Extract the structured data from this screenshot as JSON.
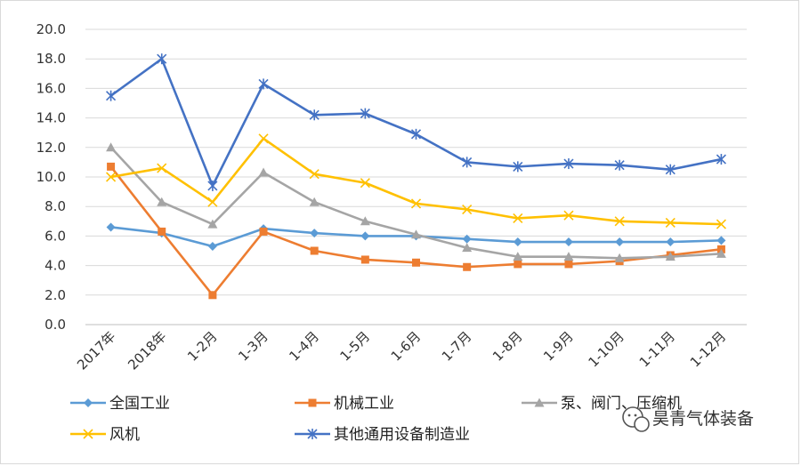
{
  "chart_data": {
    "type": "line",
    "categories": [
      "2017年",
      "2018年",
      "1-2月",
      "1-3月",
      "1-4月",
      "1-5月",
      "1-6月",
      "1-7月",
      "1-8月",
      "1-9月",
      "1-10月",
      "1-11月",
      "1-12月"
    ],
    "ylim": [
      0,
      20
    ],
    "yticks": [
      "0.0",
      "2.0",
      "4.0",
      "6.0",
      "8.0",
      "10.0",
      "12.0",
      "14.0",
      "16.0",
      "18.0",
      "20.0"
    ],
    "grid": true,
    "legend_position": "bottom",
    "series": [
      {
        "name": "全国工业",
        "color": "#5b9bd5",
        "marker": "diamond",
        "values": [
          6.6,
          6.2,
          5.3,
          6.5,
          6.2,
          6.0,
          6.0,
          5.8,
          5.6,
          5.6,
          5.6,
          5.6,
          5.7
        ]
      },
      {
        "name": "机械工业",
        "color": "#ed7d31",
        "marker": "square",
        "values": [
          10.7,
          6.3,
          2.0,
          6.3,
          5.0,
          4.4,
          4.2,
          3.9,
          4.1,
          4.1,
          4.3,
          4.7,
          5.1
        ]
      },
      {
        "name": "泵、阀门、压缩机",
        "color": "#a5a5a5",
        "marker": "triangle",
        "values": [
          12.0,
          8.3,
          6.8,
          10.3,
          8.3,
          7.0,
          6.1,
          5.2,
          4.6,
          4.6,
          4.5,
          4.6,
          4.8
        ]
      },
      {
        "name": "风机",
        "color": "#ffc000",
        "marker": "x",
        "values": [
          10.0,
          10.6,
          8.3,
          12.6,
          10.2,
          9.6,
          8.2,
          7.8,
          7.2,
          7.4,
          7.0,
          6.9,
          6.8
        ]
      },
      {
        "name": "其他通用设备制造业",
        "color": "#4472c4",
        "marker": "asterisk",
        "values": [
          15.5,
          18.0,
          9.4,
          16.3,
          14.2,
          14.3,
          12.9,
          11.0,
          10.7,
          10.9,
          10.8,
          10.5,
          11.2
        ]
      }
    ]
  },
  "watermark": {
    "text": "昊青气体装备",
    "icon": "wechat-icon"
  }
}
